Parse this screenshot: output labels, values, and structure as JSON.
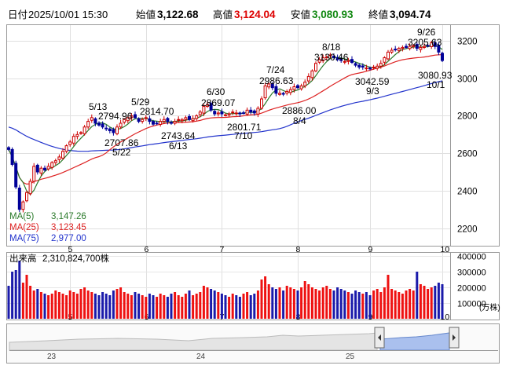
{
  "header": {
    "date_label": "日付",
    "datetime": "2025/10/01 15:30",
    "open_label": "始値",
    "open_value": "3,122.68",
    "high_label": "高値",
    "high_value": "3,124.04",
    "low_label": "安値",
    "low_value": "3,080.93",
    "close_label": "終値",
    "close_value": "3,094.74"
  },
  "colors": {
    "up": "#cc0000",
    "down": "#000099",
    "ma5": "#2a7a2a",
    "ma25": "#dd2222",
    "ma75": "#2233cc",
    "volume_up": "#ee1111",
    "volume_down": "#1a1aaa",
    "navigator_fill": "#aac0ee",
    "green_value": "#118811",
    "red_value": "#dd0000"
  },
  "legend": [
    {
      "label": "MA(5)",
      "value": "3,147.26",
      "color": "#2a7a2a"
    },
    {
      "label": "MA(25)",
      "value": "3,123.45",
      "color": "#dd2222"
    },
    {
      "label": "MA(75)",
      "value": "2,977.00",
      "color": "#2233cc"
    }
  ],
  "volume_header": {
    "label": "出来高",
    "value": "2,310,824,700株"
  },
  "navigator": {
    "years": [
      "23",
      "24",
      "25"
    ]
  },
  "chart_data": {
    "type": "candlestick",
    "price_axis": {
      "ticks": [
        2200,
        2400,
        2600,
        2800,
        3000,
        3200
      ],
      "range": [
        2110,
        3280
      ]
    },
    "volume_axis": {
      "ticks": [
        "400000",
        "300000",
        "200000",
        "100000"
      ],
      "unit": "(万株)",
      "range": [
        0,
        420000
      ]
    },
    "month_labels": [
      "5",
      "6",
      "7",
      "8",
      "9",
      "10"
    ],
    "month_bar_index": [
      17,
      38,
      59,
      80,
      100,
      120
    ],
    "annotations": [
      {
        "date": "5/13",
        "value": "2794.96"
      },
      {
        "date": "5/29",
        "value": "2814.70"
      },
      {
        "date": "6/30",
        "value": "2869.07"
      },
      {
        "date": "7/24",
        "value": "2986.63"
      },
      {
        "date": "8/18",
        "value": "3130.46"
      },
      {
        "date": "9/26",
        "value": "3205.63"
      },
      {
        "date": "5/22",
        "value": "2707.86"
      },
      {
        "date": "6/13",
        "value": "2743.64"
      },
      {
        "date": "7/10",
        "value": "2801.71"
      },
      {
        "date": "8/4",
        "value": "2886.00"
      },
      {
        "date": "9/3",
        "value": "3042.59"
      },
      {
        "date": "10/1",
        "value": "3080.93"
      }
    ],
    "series": [
      {
        "name": "MA(5)",
        "last": 3147.26
      },
      {
        "name": "MA(25)",
        "last": 3123.45
      },
      {
        "name": "MA(75)",
        "last": 2977.0
      }
    ],
    "closes": [
      2620,
      2540,
      2420,
      2300,
      2340,
      2390,
      2450,
      2530,
      2500,
      2520,
      2510,
      2530,
      2550,
      2560,
      2580,
      2610,
      2640,
      2660,
      2690,
      2700,
      2710,
      2740,
      2770,
      2790,
      2760,
      2750,
      2740,
      2730,
      2720,
      2710,
      2740,
      2760,
      2780,
      2790,
      2800,
      2790,
      2770,
      2780,
      2790,
      2770,
      2755,
      2760,
      2770,
      2780,
      2770,
      2760,
      2770,
      2780,
      2780,
      2790,
      2780,
      2785,
      2800,
      2820,
      2850,
      2860,
      2830,
      2810,
      2815,
      2810,
      2805,
      2810,
      2820,
      2815,
      2810,
      2815,
      2830,
      2820,
      2815,
      2840,
      2890,
      2960,
      2970,
      2950,
      2920,
      2920,
      2915,
      2930,
      2940,
      2955,
      2950,
      2960,
      2980,
      3010,
      3040,
      3080,
      3100,
      3110,
      3115,
      3125,
      3110,
      3100,
      3095,
      3090,
      3095,
      3085,
      3070,
      3060,
      3060,
      3055,
      3050,
      3060,
      3065,
      3080,
      3110,
      3140,
      3150,
      3155,
      3160,
      3165,
      3165,
      3170,
      3175,
      3160,
      3165,
      3170,
      3175,
      3190,
      3170,
      3140,
      3095
    ],
    "volumes": [
      210000,
      300000,
      310000,
      370000,
      230000,
      280000,
      210000,
      180000,
      190000,
      170000,
      160000,
      150000,
      160000,
      180000,
      170000,
      160000,
      150000,
      180000,
      170000,
      160000,
      190000,
      200000,
      180000,
      170000,
      160000,
      150000,
      170000,
      160000,
      150000,
      180000,
      190000,
      200000,
      170000,
      160000,
      150000,
      170000,
      160000,
      150000,
      140000,
      160000,
      150000,
      140000,
      160000,
      150000,
      140000,
      160000,
      170000,
      150000,
      140000,
      160000,
      180000,
      150000,
      160000,
      170000,
      210000,
      200000,
      190000,
      180000,
      170000,
      160000,
      150000,
      140000,
      160000,
      150000,
      140000,
      160000,
      170000,
      150000,
      160000,
      180000,
      250000,
      270000,
      220000,
      200000,
      190000,
      200000,
      180000,
      210000,
      200000,
      190000,
      180000,
      200000,
      240000,
      220000,
      200000,
      190000,
      180000,
      200000,
      210000,
      190000,
      180000,
      200000,
      190000,
      180000,
      170000,
      160000,
      180000,
      170000,
      160000,
      170000,
      150000,
      180000,
      190000,
      170000,
      200000,
      280000,
      190000,
      180000,
      170000,
      160000,
      180000,
      190000,
      180000,
      300000,
      220000,
      210000,
      190000,
      200000,
      210000,
      230000,
      220000
    ]
  }
}
